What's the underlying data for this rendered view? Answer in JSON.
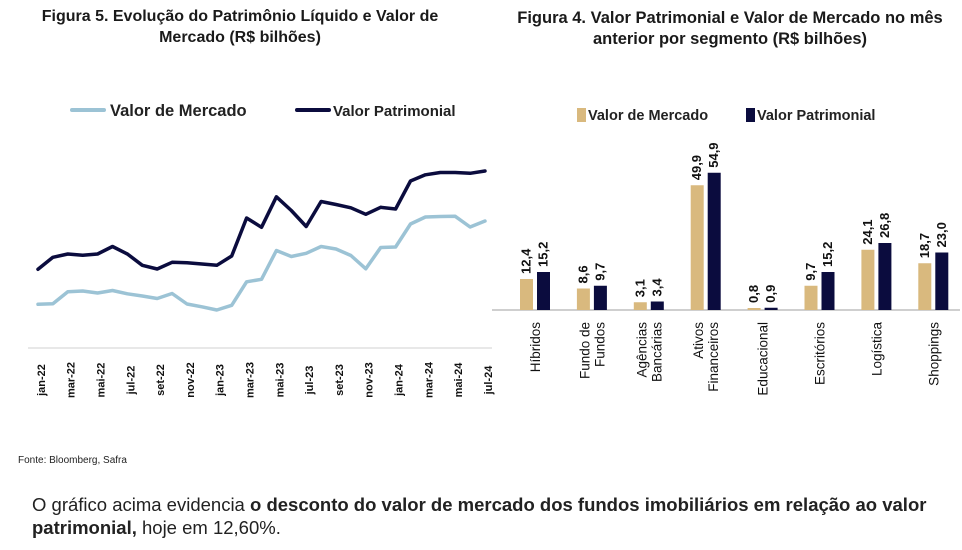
{
  "fig5": {
    "title": "Figura 5. Evolução do Patrimônio Líquido e Valor de Mercado (R$ bilhões)",
    "chart_data": {
      "type": "line",
      "x": [
        "jan-22",
        "fev-22",
        "mar-22",
        "abr-22",
        "mai-22",
        "jun-22",
        "jul-22",
        "ago-22",
        "set-22",
        "out-22",
        "nov-22",
        "dez-22",
        "jan-23",
        "fev-23",
        "mar-23",
        "abr-23",
        "mai-23",
        "jun-23",
        "jul-23",
        "ago-23",
        "set-23",
        "out-23",
        "nov-23",
        "dez-23",
        "jan-24",
        "fev-24",
        "mar-24",
        "abr-24",
        "mai-24",
        "jun-24",
        "jul-24"
      ],
      "x_tick_labels": [
        "jan-22",
        "mar-22",
        "mai-22",
        "jul-22",
        "set-22",
        "nov-22",
        "jan-23",
        "mar-23",
        "mai-23",
        "jul-23",
        "set-23",
        "nov-23",
        "jan-24",
        "mar-24",
        "mai-24",
        "jul-24"
      ],
      "series": [
        {
          "name": "Valor de Mercado",
          "color": "#9cc3d5",
          "values": [
            7.5,
            7.7,
            12.5,
            12.8,
            12.0,
            13.0,
            11.7,
            10.8,
            9.8,
            11.8,
            7.6,
            6.5,
            5.2,
            7.1,
            16.5,
            17.5,
            29.0,
            26.6,
            27.9,
            30.6,
            29.6,
            27.0,
            21.7,
            30.2,
            30.4,
            39.6,
            42.4,
            42.6,
            42.7,
            38.4,
            40.8
          ]
        },
        {
          "name": "Valor Patrimonial",
          "color": "#0b0c3e",
          "values": [
            21.5,
            26.3,
            27.6,
            27.1,
            27.6,
            30.6,
            27.6,
            23.1,
            21.6,
            24.3,
            24.1,
            23.6,
            23.1,
            26.8,
            42.0,
            38.3,
            50.5,
            45.0,
            38.6,
            48.6,
            47.4,
            46.1,
            43.5,
            46.3,
            45.6,
            56.8,
            59.3,
            60.2,
            60.2,
            59.9,
            60.8
          ]
        }
      ]
    }
  },
  "fig4": {
    "title": "Figura 4. Valor Patrimonial e Valor de Mercado no mês anterior por segmento (R$ bilhões)",
    "chart_data": {
      "type": "bar",
      "categories": [
        [
          "Híbridos"
        ],
        [
          "Fundo de",
          "Fundos"
        ],
        [
          "Agências",
          "Bancárias"
        ],
        [
          "Ativos",
          "Financeiros"
        ],
        [
          "Educacional"
        ],
        [
          "Escritórios"
        ],
        [
          "Logística"
        ],
        [
          "Shoppings"
        ]
      ],
      "series": [
        {
          "name": "Valor de Mercado",
          "color": "#d9b97e",
          "values": [
            12.4,
            8.6,
            3.1,
            49.9,
            0.8,
            9.7,
            24.1,
            18.7
          ],
          "labels": [
            "12,4",
            "8,6",
            "3,1",
            "49,9",
            "0,8",
            "9,7",
            "24,1",
            "18,7"
          ]
        },
        {
          "name": "Valor Patrimonial",
          "color": "#0b0c3e",
          "values": [
            15.2,
            9.7,
            3.4,
            54.9,
            0.9,
            15.2,
            26.8,
            23.0
          ],
          "labels": [
            "15,2",
            "9,7",
            "3,4",
            "54,9",
            "0,9",
            "15,2",
            "26,8",
            "23,0"
          ]
        }
      ]
    }
  },
  "source": "Fonte:  Bloomberg, Safra",
  "note": {
    "part1": "O gráfico acima evidencia ",
    "part2": "o desconto do valor de mercado dos fundos imobiliários em relação ao valor patrimonial,",
    "part3": " hoje em 12,60%."
  }
}
